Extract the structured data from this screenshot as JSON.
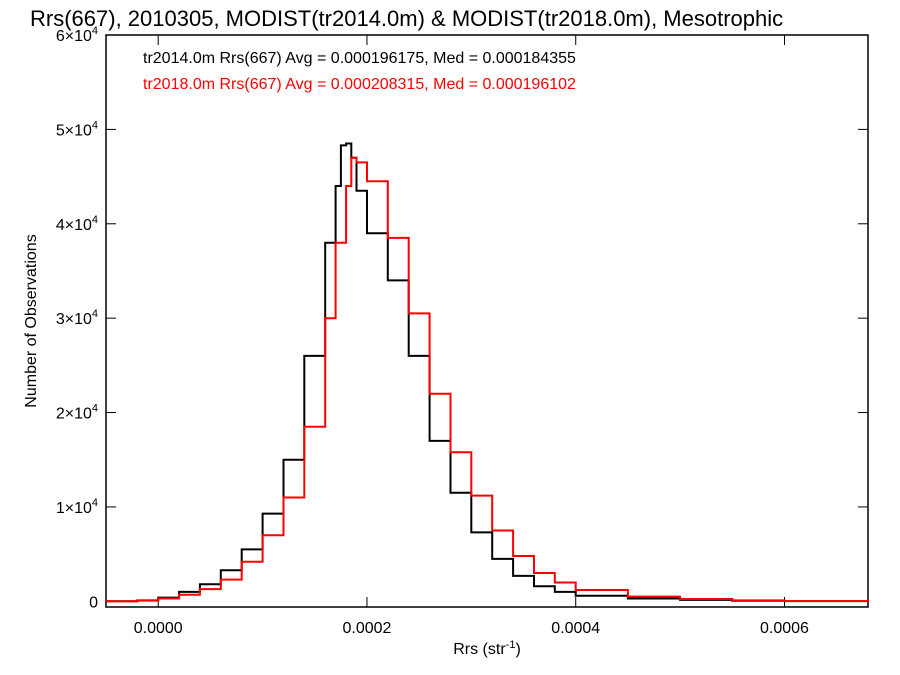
{
  "chart_data": {
    "type": "line",
    "title": "Rrs(667), 2010305, MODIST(tr2014.0m) & MODIST(tr2018.0m), Mesotrophic",
    "xlabel": "Rrs (str",
    "xlabel_sup": "-1",
    "xlabel_end": ")",
    "ylabel": "Number of Observations",
    "xlim": [
      -5e-05,
      0.00068
    ],
    "ylim": [
      -600,
      60000
    ],
    "x_ticks": [
      {
        "value": 0.0,
        "label": "0.0000"
      },
      {
        "value": 0.0002,
        "label": "0.0002"
      },
      {
        "value": 0.0004,
        "label": "0.0004"
      },
      {
        "value": 0.0006,
        "label": "0.0006"
      }
    ],
    "y_ticks": [
      {
        "value": 0,
        "label": "0",
        "sup": ""
      },
      {
        "value": 10000,
        "label": "1×10",
        "sup": "4"
      },
      {
        "value": 20000,
        "label": "2×10",
        "sup": "4"
      },
      {
        "value": 30000,
        "label": "3×10",
        "sup": "4"
      },
      {
        "value": 40000,
        "label": "4×10",
        "sup": "4"
      },
      {
        "value": 50000,
        "label": "5×10",
        "sup": "4"
      },
      {
        "value": 60000,
        "label": "6×10",
        "sup": "4"
      }
    ],
    "series": [
      {
        "color": "#000000",
        "annotation": "tr2014.0m Rrs(667) Avg = 0.000196175, Med = 0.000184355",
        "points": [
          [
            -5e-05,
            0
          ],
          [
            -2e-05,
            100
          ],
          [
            0.0,
            400
          ],
          [
            2e-05,
            1000
          ],
          [
            4e-05,
            1800
          ],
          [
            6e-05,
            3300
          ],
          [
            8e-05,
            5500
          ],
          [
            0.0001,
            9300
          ],
          [
            0.00012,
            15000
          ],
          [
            0.00014,
            26000
          ],
          [
            0.00016,
            38000
          ],
          [
            0.00017,
            44000
          ],
          [
            0.000175,
            48300
          ],
          [
            0.00018,
            48500
          ],
          [
            0.000185,
            47000
          ],
          [
            0.00019,
            43500
          ],
          [
            0.0002,
            39000
          ],
          [
            0.00022,
            34000
          ],
          [
            0.00024,
            26000
          ],
          [
            0.00026,
            17000
          ],
          [
            0.00028,
            11500
          ],
          [
            0.0003,
            7300
          ],
          [
            0.00032,
            4500
          ],
          [
            0.00034,
            2700
          ],
          [
            0.00036,
            1600
          ],
          [
            0.00038,
            1000
          ],
          [
            0.0004,
            600
          ],
          [
            0.00045,
            300
          ],
          [
            0.0005,
            150
          ],
          [
            0.00055,
            60
          ],
          [
            0.0006,
            20
          ],
          [
            0.00068,
            0
          ]
        ]
      },
      {
        "color": "#ff0000",
        "annotation": "tr2018.0m Rrs(667) Avg = 0.000208315, Med = 0.000196102",
        "points": [
          [
            -5e-05,
            0
          ],
          [
            -2e-05,
            80
          ],
          [
            0.0,
            300
          ],
          [
            2e-05,
            700
          ],
          [
            4e-05,
            1300
          ],
          [
            6e-05,
            2300
          ],
          [
            8e-05,
            4200
          ],
          [
            0.0001,
            7000
          ],
          [
            0.00012,
            11000
          ],
          [
            0.00014,
            18500
          ],
          [
            0.00016,
            30000
          ],
          [
            0.00017,
            38000
          ],
          [
            0.00018,
            44000
          ],
          [
            0.000185,
            47000
          ],
          [
            0.00019,
            46500
          ],
          [
            0.0002,
            44500
          ],
          [
            0.00022,
            38500
          ],
          [
            0.00024,
            30500
          ],
          [
            0.00026,
            22000
          ],
          [
            0.00028,
            15800
          ],
          [
            0.0003,
            11200
          ],
          [
            0.00032,
            7500
          ],
          [
            0.00034,
            4800
          ],
          [
            0.00036,
            3000
          ],
          [
            0.00038,
            2000
          ],
          [
            0.0004,
            1200
          ],
          [
            0.00045,
            500
          ],
          [
            0.0005,
            250
          ],
          [
            0.00055,
            100
          ],
          [
            0.0006,
            40
          ],
          [
            0.00068,
            0
          ]
        ]
      }
    ]
  }
}
